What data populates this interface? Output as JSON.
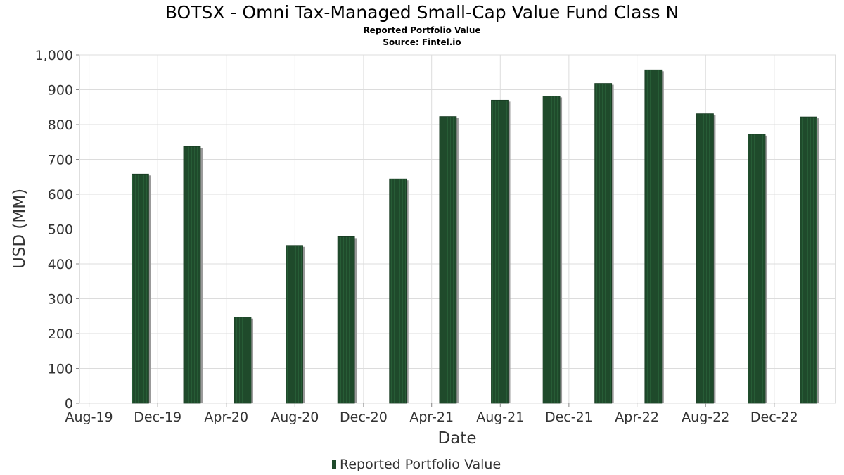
{
  "chart_data": {
    "type": "bar",
    "title": "BOTSX - Omni Tax-Managed Small-Cap Value Fund Class N",
    "subtitle": "Reported Portfolio Value",
    "source": "Source: Fintel.io",
    "xlabel": "Date",
    "ylabel": "USD (MM)",
    "ylim": [
      0,
      1000
    ],
    "yticks": [
      0,
      100,
      200,
      300,
      400,
      500,
      600,
      700,
      800,
      900,
      1000
    ],
    "ytick_labels": [
      "0",
      "100",
      "200",
      "300",
      "400",
      "500",
      "600",
      "700",
      "800",
      "900",
      "1,000"
    ],
    "xticks": [
      "Aug-19",
      "Dec-19",
      "Apr-20",
      "Aug-20",
      "Dec-20",
      "Apr-21",
      "Aug-21",
      "Dec-21",
      "Apr-22",
      "Aug-22",
      "Dec-22"
    ],
    "x": [
      "2019-10-31",
      "2020-01-31",
      "2020-04-30",
      "2020-07-31",
      "2020-10-31",
      "2021-01-31",
      "2021-04-30",
      "2021-07-31",
      "2021-10-31",
      "2022-01-31",
      "2022-04-30",
      "2022-07-31",
      "2022-10-31",
      "2023-01-31"
    ],
    "series": [
      {
        "name": "Reported Portfolio Value",
        "color": "#1f4a2b",
        "values": [
          658,
          737,
          247,
          453,
          478,
          644,
          823,
          870,
          882,
          918,
          957,
          831,
          772,
          822
        ]
      }
    ],
    "grid": true,
    "legend_position": "bottom-center"
  }
}
